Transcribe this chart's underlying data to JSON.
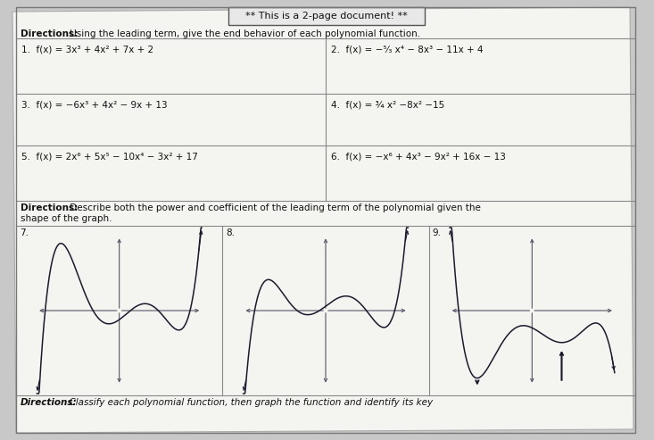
{
  "title": "** This is a 2-page document! **",
  "dir1_bold": "Directions:",
  "dir1_rest": " Using the leading term, give the end behavior of each polynomial function.",
  "dir2_bold": "Directions:",
  "dir2_line1": " Describe both the power and coefficient of the leading term of the polynomial given the",
  "dir2_line2": "shape of the graph.",
  "dir3_bold": "Directions:",
  "dir3_rest": "  Classify each polynomial function, then graph the function and identify its key",
  "p1": "1.  f(x) = 3x³ + 4x² + 7x + 2",
  "p2": "2.  f(x) = −⁵⁄₃ x⁴ − 8x³ − 11x + 4",
  "p3": "3.  f(x) = −6x³ + 4x² − 9x + 13",
  "p4": "4.  f(x) = ¾ x² −8x² −15",
  "p5": "5.  f(x) = 2x⁶ + 5x⁵ − 10x⁴ − 3x² + 17",
  "p6": "6.  f(x) = −x⁶ + 4x³ − 9x² + 16x − 13",
  "g_labels": [
    "7.",
    "8.",
    "9."
  ],
  "bg_color": "#c8c8c8",
  "paper_color": "#f4f4f0",
  "text_color": "#111111",
  "curve_color": "#1a1a2e",
  "axis_color": "#555566",
  "border_color": "#888888",
  "title_box_color": "#e8e8e8"
}
